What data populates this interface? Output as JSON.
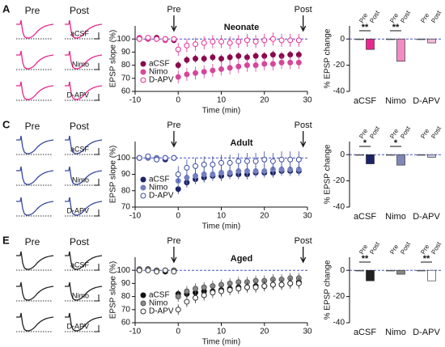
{
  "traces": [
    {
      "panel": "A",
      "pre": "Pre",
      "post": "Post",
      "rows": [
        "aCSF",
        "Nimo",
        "D-APV"
      ],
      "color": "#e8288f"
    },
    {
      "panel": "C",
      "pre": "Pre",
      "post": "Post",
      "rows": [
        "aCSF",
        "Nimo",
        "D-APV"
      ],
      "color": "#3a4aa0"
    },
    {
      "panel": "E",
      "pre": "Pre",
      "post": "Post",
      "rows": [
        "aCSF",
        "Nimo",
        "D-APV"
      ],
      "color": "#222222"
    }
  ],
  "chart_data": [
    {
      "type": "scatter",
      "title": "Neonate",
      "xlabel": "Time (min)",
      "ylabel": "EPSP slope (%)",
      "xlim": [
        -10,
        30
      ],
      "xticks": [
        -10,
        0,
        10,
        20,
        30
      ],
      "ylim": [
        60,
        110
      ],
      "yticks": [
        60,
        70,
        80,
        90,
        100
      ],
      "reference_line": 100,
      "legend": "lower left",
      "annotations": [
        {
          "text": "Pre",
          "x": -1
        },
        {
          "text": "Post",
          "x": 29
        }
      ],
      "x": [
        -9,
        -7,
        -5,
        -3,
        -1,
        0,
        2,
        4,
        6,
        8,
        10,
        12,
        14,
        16,
        18,
        20,
        22,
        24,
        26,
        28
      ],
      "series": [
        {
          "name": "aCSF",
          "color": "#8a0a4e",
          "fill": "#8a0a4e",
          "values": [
            100,
            100,
            101,
            100,
            99,
            80,
            84,
            85,
            85,
            86,
            85,
            86,
            87,
            86,
            87,
            87,
            88,
            87,
            88,
            88
          ],
          "errors": [
            1,
            1,
            1,
            1,
            1,
            3,
            3,
            3,
            3,
            3,
            3,
            3,
            3,
            3,
            3,
            3,
            3,
            3,
            3,
            3
          ]
        },
        {
          "name": "Nimo",
          "color": "#d6479a",
          "fill": "#d6479a",
          "values": [
            101,
            100,
            100,
            99,
            100,
            71,
            73,
            74,
            75,
            76,
            77,
            78,
            79,
            80,
            80,
            81,
            81,
            82,
            82,
            82
          ],
          "errors": [
            2,
            2,
            2,
            2,
            2,
            5,
            5,
            5,
            5,
            5,
            5,
            5,
            5,
            5,
            5,
            5,
            5,
            5,
            5,
            5
          ]
        },
        {
          "name": "D-APV",
          "color": "#e8288f",
          "fill": "#ffffff",
          "values": [
            100,
            101,
            100,
            100,
            100,
            92,
            95,
            96,
            97,
            98,
            98,
            97,
            98,
            99,
            98,
            99,
            100,
            99,
            99,
            99
          ],
          "errors": [
            2,
            2,
            2,
            2,
            2,
            5,
            5,
            5,
            5,
            5,
            5,
            5,
            5,
            5,
            5,
            5,
            5,
            5,
            5,
            5
          ]
        }
      ]
    },
    {
      "type": "bar",
      "ylabel": "% EPSP change",
      "ylim": [
        -40,
        10
      ],
      "yticks": [
        -40,
        -20,
        0
      ],
      "reference_line": 0,
      "categories": [
        "aCSF",
        "Nimo",
        "D-APV"
      ],
      "significance": [
        "**",
        "**",
        null
      ],
      "series": [
        {
          "name": "Pre",
          "color": "#ffffff",
          "values": [
            0,
            0,
            0
          ]
        },
        {
          "name": "Post",
          "colors": [
            "#e8288f",
            "#f08cc0",
            "#f6b8d8"
          ],
          "values": [
            -8,
            -17,
            -3
          ]
        }
      ]
    },
    {
      "type": "scatter",
      "title": "Adult",
      "xlabel": "Time (min)",
      "ylabel": "EPSP slope (%)",
      "xlim": [
        -10,
        30
      ],
      "xticks": [
        -10,
        0,
        10,
        20,
        30
      ],
      "ylim": [
        70,
        110
      ],
      "yticks": [
        70,
        80,
        90,
        100
      ],
      "reference_line": 100,
      "legend": "lower left",
      "annotations": [
        {
          "text": "Pre",
          "x": -1
        },
        {
          "text": "Post",
          "x": 29
        }
      ],
      "x": [
        -9,
        -7,
        -5,
        -3,
        -1,
        0,
        2,
        4,
        6,
        8,
        10,
        12,
        14,
        16,
        18,
        20,
        22,
        24,
        26,
        28
      ],
      "series": [
        {
          "name": "aCSF",
          "color": "#1b2466",
          "fill": "#1b2466",
          "values": [
            100,
            100,
            100,
            99,
            100,
            81,
            85,
            87,
            88,
            89,
            89,
            90,
            90,
            90,
            91,
            91,
            91,
            92,
            92,
            92
          ],
          "errors": [
            1,
            1,
            1,
            1,
            1,
            3,
            3,
            3,
            3,
            3,
            3,
            3,
            3,
            3,
            3,
            3,
            3,
            3,
            3,
            3
          ]
        },
        {
          "name": "Nimo",
          "color": "#7480c0",
          "fill": "#7480c0",
          "values": [
            100,
            100,
            100,
            100,
            100,
            86,
            88,
            89,
            90,
            90,
            91,
            91,
            92,
            92,
            92,
            92,
            93,
            93,
            93,
            93
          ],
          "errors": [
            1,
            1,
            1,
            1,
            1,
            4,
            4,
            4,
            4,
            4,
            4,
            4,
            4,
            4,
            4,
            4,
            4,
            4,
            4,
            4
          ]
        },
        {
          "name": "D-APV",
          "color": "#3a4aa0",
          "fill": "#ffffff",
          "values": [
            100,
            101,
            99,
            100,
            100,
            90,
            94,
            95,
            96,
            96,
            97,
            97,
            98,
            98,
            98,
            99,
            98,
            99,
            99,
            99
          ],
          "errors": [
            1,
            1,
            1,
            1,
            1,
            5,
            5,
            5,
            5,
            5,
            5,
            5,
            5,
            5,
            5,
            5,
            5,
            5,
            5,
            5
          ]
        }
      ]
    },
    {
      "type": "bar",
      "ylabel": "% EPSP change",
      "ylim": [
        -40,
        10
      ],
      "yticks": [
        -40,
        -20,
        0
      ],
      "reference_line": 0,
      "categories": [
        "aCSF",
        "Nimo",
        "D-APV"
      ],
      "significance": [
        "*",
        "*",
        null
      ],
      "series": [
        {
          "name": "Pre",
          "color": "#ffffff",
          "values": [
            0,
            0,
            0
          ]
        },
        {
          "name": "Post",
          "colors": [
            "#1b2466",
            "#8088b8",
            "#c8cce6"
          ],
          "values": [
            -7,
            -8,
            -2
          ]
        }
      ]
    },
    {
      "type": "scatter",
      "title": "Aged",
      "xlabel": "Time (min)",
      "ylabel": "EPSP slope (%)",
      "xlim": [
        -10,
        30
      ],
      "xticks": [
        -10,
        0,
        10,
        20,
        30
      ],
      "ylim": [
        60,
        110
      ],
      "yticks": [
        60,
        70,
        80,
        90,
        100
      ],
      "reference_line": 100,
      "legend": "lower left",
      "annotations": [
        {
          "text": "Pre",
          "x": -1
        },
        {
          "text": "Post",
          "x": 29
        }
      ],
      "x": [
        -9,
        -7,
        -5,
        -3,
        -1,
        0,
        2,
        4,
        6,
        8,
        10,
        12,
        14,
        16,
        18,
        20,
        22,
        24,
        26,
        28
      ],
      "series": [
        {
          "name": "aCSF",
          "color": "#111111",
          "fill": "#111111",
          "values": [
            100,
            101,
            100,
            99,
            100,
            82,
            82,
            83,
            84,
            84,
            85,
            86,
            87,
            87,
            88,
            88,
            89,
            89,
            90,
            91
          ],
          "errors": [
            1,
            1,
            1,
            1,
            1,
            3,
            3,
            3,
            3,
            3,
            3,
            3,
            3,
            3,
            3,
            3,
            3,
            3,
            3,
            3
          ]
        },
        {
          "name": "Nimo",
          "color": "#555555",
          "fill": "#8a8a8a",
          "values": [
            101,
            101,
            100,
            100,
            100,
            80,
            84,
            86,
            87,
            88,
            89,
            90,
            91,
            91,
            92,
            92,
            93,
            93,
            94,
            94
          ],
          "errors": [
            2,
            2,
            2,
            2,
            2,
            4,
            4,
            4,
            4,
            4,
            4,
            4,
            4,
            4,
            4,
            4,
            4,
            4,
            4,
            4
          ]
        },
        {
          "name": "D-APV",
          "color": "#333333",
          "fill": "#ffffff",
          "values": [
            100,
            100,
            99,
            100,
            99,
            70,
            76,
            79,
            81,
            83,
            84,
            85,
            86,
            87,
            87,
            88,
            89,
            89,
            90,
            90
          ],
          "errors": [
            2,
            2,
            2,
            2,
            2,
            4,
            4,
            4,
            4,
            4,
            4,
            4,
            4,
            4,
            4,
            4,
            4,
            4,
            4,
            4
          ]
        }
      ]
    },
    {
      "type": "bar",
      "ylabel": "% EPSP change",
      "ylim": [
        -40,
        10
      ],
      "yticks": [
        -40,
        -20,
        0
      ],
      "reference_line": 0,
      "categories": [
        "aCSF",
        "Nimo",
        "D-APV"
      ],
      "significance": [
        "**",
        null,
        "**"
      ],
      "series": [
        {
          "name": "Pre",
          "color": "#ffffff",
          "values": [
            0,
            0,
            0
          ]
        },
        {
          "name": "Post",
          "colors": [
            "#222222",
            "#888888",
            "#ffffff"
          ],
          "values": [
            -8,
            -3,
            -8
          ]
        }
      ]
    }
  ]
}
